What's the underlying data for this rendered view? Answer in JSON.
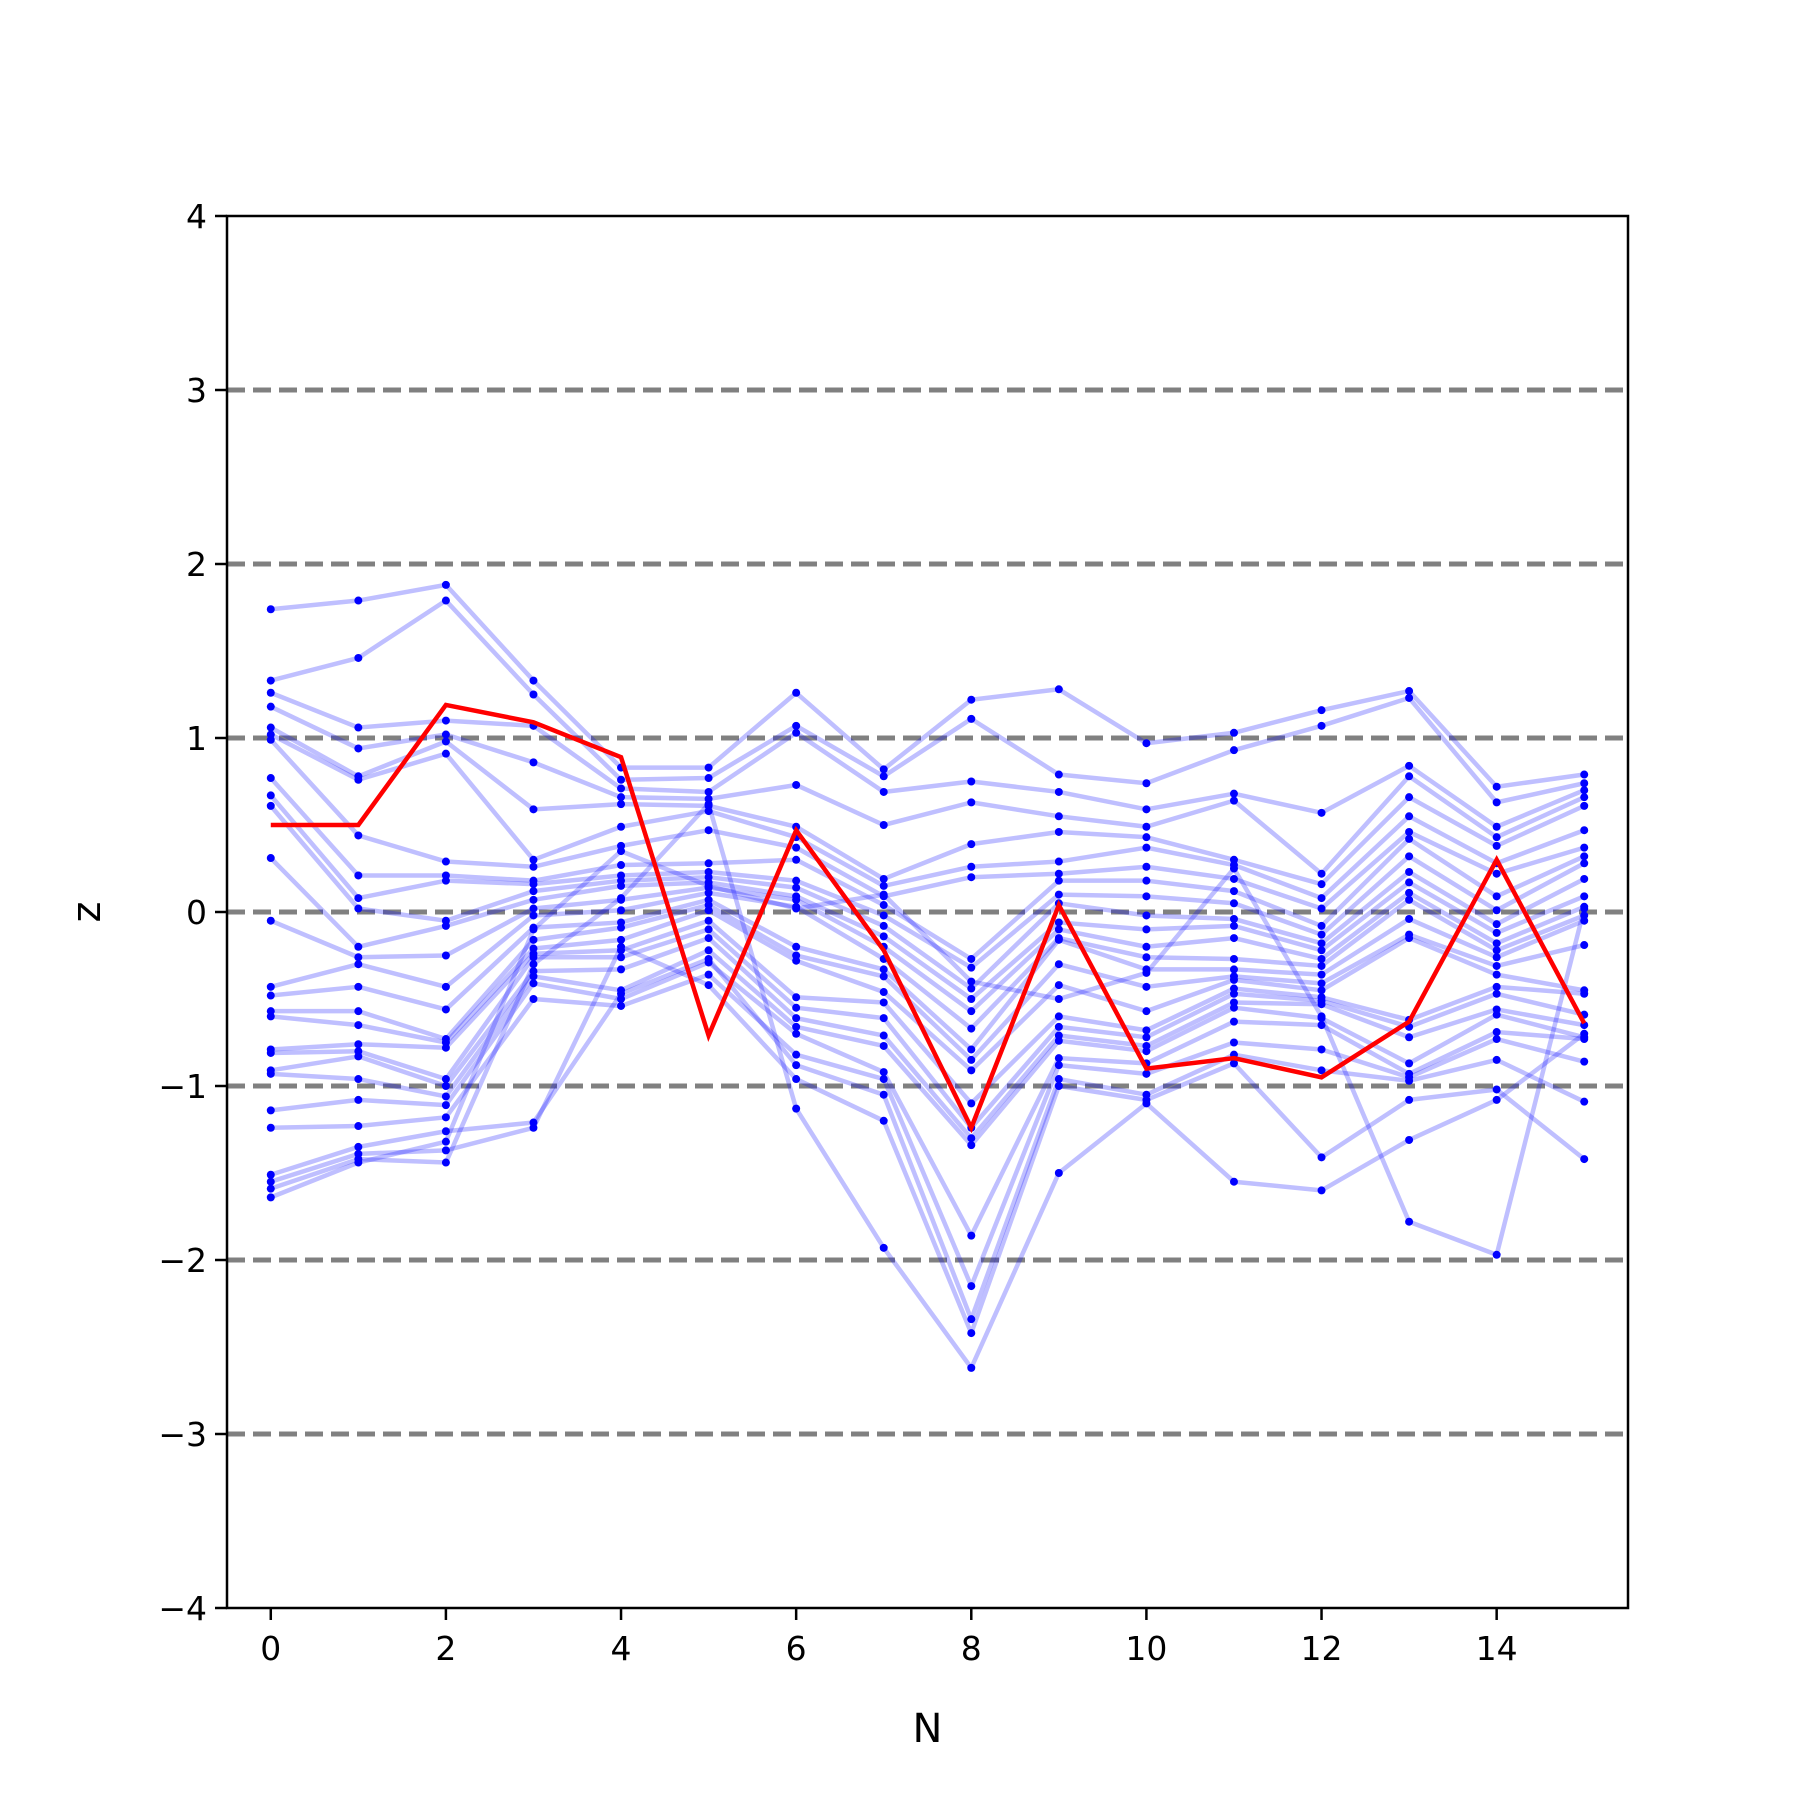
{
  "chart_data": {
    "type": "line",
    "title": "",
    "xlabel": "N",
    "ylabel": "z",
    "xlim": [
      -0.5,
      15.5
    ],
    "ylim": [
      -4,
      4
    ],
    "x": [
      0,
      1,
      2,
      3,
      4,
      5,
      6,
      7,
      8,
      9,
      10,
      11,
      12,
      13,
      14,
      15
    ],
    "x_ticks": [
      0,
      2,
      4,
      6,
      8,
      10,
      12,
      14
    ],
    "x_tick_labels": [
      "0",
      "2",
      "4",
      "6",
      "8",
      "10",
      "12",
      "14"
    ],
    "y_ticks": [
      -4,
      -3,
      -2,
      -1,
      0,
      1,
      2,
      3,
      4
    ],
    "y_tick_labels": [
      "−4",
      "−3",
      "−2",
      "−1",
      "0",
      "1",
      "2",
      "3",
      "4"
    ],
    "reference_lines": [
      -3,
      -2,
      -1,
      0,
      1,
      2,
      3
    ],
    "reference_line_color": "#808080",
    "background_color": "#0000ff",
    "highlight_color": "#ff0000",
    "highlight_series": [
      0.5,
      0.5,
      1.19,
      1.09,
      0.89,
      -0.71,
      0.47,
      -0.22,
      -1.24,
      0.04,
      -0.9,
      -0.84,
      -0.95,
      -0.63,
      0.3,
      -0.64
    ],
    "background_series": [
      [
        1.74,
        1.79,
        1.88,
        1.33,
        0.83,
        0.83,
        1.26,
        0.82,
        1.22,
        1.28,
        0.97,
        1.03,
        1.16,
        1.27,
        0.72,
        0.79
      ],
      [
        1.33,
        1.46,
        1.79,
        1.25,
        0.76,
        0.77,
        1.07,
        0.78,
        1.11,
        0.79,
        0.74,
        0.93,
        1.07,
        1.23,
        0.63,
        0.74
      ],
      [
        1.26,
        1.06,
        1.1,
        1.07,
        0.71,
        0.69,
        1.03,
        0.69,
        0.75,
        0.69,
        0.59,
        0.68,
        0.57,
        0.84,
        0.49,
        0.7
      ],
      [
        1.18,
        0.94,
        1.02,
        0.86,
        0.66,
        0.65,
        0.73,
        0.5,
        0.63,
        0.55,
        0.49,
        0.64,
        0.22,
        0.78,
        0.43,
        0.66
      ],
      [
        1.06,
        0.78,
        0.98,
        0.59,
        0.62,
        0.61,
        0.49,
        0.19,
        0.39,
        0.46,
        0.43,
        0.3,
        0.16,
        0.66,
        0.38,
        0.61
      ],
      [
        1.02,
        0.76,
        0.91,
        0.3,
        0.49,
        0.58,
        0.43,
        0.15,
        0.26,
        0.29,
        0.37,
        0.27,
        0.08,
        0.55,
        0.28,
        0.47
      ],
      [
        0.99,
        0.44,
        0.29,
        0.26,
        0.38,
        0.47,
        0.37,
        0.09,
        0.2,
        0.22,
        0.26,
        0.19,
        0.02,
        0.46,
        0.22,
        0.37
      ],
      [
        0.77,
        0.21,
        0.21,
        0.18,
        0.27,
        0.28,
        0.3,
        0.04,
        -0.27,
        0.18,
        0.18,
        0.12,
        -0.08,
        0.42,
        0.09,
        0.32
      ],
      [
        0.67,
        0.08,
        0.18,
        0.16,
        0.21,
        0.23,
        0.18,
        -0.02,
        -0.32,
        0.1,
        0.09,
        0.05,
        -0.13,
        0.32,
        0.01,
        0.28
      ],
      [
        0.61,
        0.02,
        -0.05,
        0.12,
        0.18,
        0.2,
        0.14,
        -0.08,
        -0.44,
        0.05,
        -0.02,
        -0.04,
        -0.18,
        0.23,
        -0.07,
        0.19
      ],
      [
        0.31,
        -0.2,
        -0.08,
        0.07,
        0.15,
        0.17,
        0.09,
        -0.14,
        -0.5,
        -0.06,
        -0.1,
        -0.08,
        -0.22,
        0.17,
        -0.12,
        0.09
      ],
      [
        -0.05,
        -0.26,
        -0.25,
        0.02,
        0.07,
        0.14,
        0.07,
        -0.2,
        -0.57,
        -0.1,
        -0.2,
        -0.15,
        -0.27,
        0.11,
        -0.18,
        0.03
      ],
      [
        -0.43,
        -0.3,
        -0.43,
        -0.02,
        0.01,
        0.11,
        0.03,
        -0.27,
        -0.67,
        -0.15,
        -0.26,
        -0.27,
        -0.31,
        0.07,
        -0.22,
        -0.02
      ],
      [
        -0.48,
        -0.43,
        -0.56,
        -0.09,
        -0.06,
        0.07,
        -0.2,
        -0.33,
        -0.79,
        -0.16,
        -0.33,
        -0.33,
        -0.36,
        -0.04,
        -0.26,
        -0.05
      ],
      [
        -0.57,
        -0.57,
        -0.73,
        -0.16,
        -0.09,
        0.04,
        -0.25,
        -0.37,
        -0.85,
        -0.3,
        -0.43,
        -0.37,
        -0.41,
        -0.13,
        -0.31,
        -0.19
      ],
      [
        -0.6,
        -0.65,
        -0.75,
        -0.21,
        -0.16,
        0.01,
        -0.28,
        -0.46,
        -0.91,
        -0.42,
        -0.57,
        -0.39,
        -0.45,
        -0.15,
        -0.36,
        -0.45
      ],
      [
        -0.79,
        -0.76,
        -0.78,
        -0.24,
        -0.22,
        -0.05,
        -0.49,
        -0.52,
        -1.1,
        -0.6,
        -0.68,
        -0.44,
        -0.49,
        -0.62,
        -0.43,
        -0.47
      ],
      [
        -0.81,
        -0.8,
        -0.96,
        -0.26,
        -0.26,
        -0.1,
        -0.55,
        -0.61,
        -1.24,
        -0.66,
        -0.72,
        -0.47,
        -0.51,
        -0.66,
        -0.47,
        -0.59
      ],
      [
        -0.91,
        -0.83,
        -1.0,
        -0.34,
        -0.33,
        -0.15,
        -0.61,
        -0.71,
        -1.3,
        -0.71,
        -0.77,
        -0.52,
        -0.53,
        -0.72,
        -0.56,
        -0.65
      ],
      [
        -0.93,
        -0.96,
        -1.06,
        -0.37,
        -0.45,
        -0.22,
        -0.66,
        -0.77,
        -1.34,
        -0.74,
        -0.8,
        -0.55,
        -0.61,
        -0.87,
        -0.59,
        -0.72
      ],
      [
        -1.14,
        -1.08,
        -1.11,
        -0.41,
        -0.5,
        -0.29,
        -0.7,
        -0.92,
        -1.86,
        -0.84,
        -0.87,
        -0.63,
        -0.65,
        -0.93,
        -0.69,
        -0.73
      ],
      [
        -1.24,
        -1.23,
        -1.18,
        -0.5,
        -0.54,
        -0.36,
        -0.82,
        -0.96,
        -2.15,
        -0.88,
        -0.93,
        -0.75,
        -0.79,
        -0.95,
        -0.73,
        -0.86
      ],
      [
        -1.51,
        -1.35,
        -1.26,
        -1.21,
        -0.47,
        -0.27,
        -0.88,
        -1.05,
        -2.34,
        -0.96,
        -1.05,
        -0.82,
        -0.91,
        -0.97,
        -0.85,
        -1.09
      ],
      [
        -1.55,
        -1.39,
        -1.37,
        -1.24,
        -0.2,
        -0.42,
        -0.96,
        -1.2,
        -2.42,
        -1.0,
        -1.08,
        -0.87,
        -1.41,
        -1.08,
        -1.02,
        -1.42
      ],
      [
        -1.59,
        -1.42,
        -1.44,
        -0.3,
        0.08,
        0.62,
        -1.13,
        -1.93,
        -2.62,
        -1.5,
        -1.1,
        -1.55,
        -1.6,
        -1.31,
        -1.08,
        -0.7
      ],
      [
        -1.64,
        -1.44,
        -1.32,
        -0.1,
        0.35,
        0.15,
        0.02,
        0.1,
        -0.4,
        -0.5,
        -0.35,
        0.25,
        -0.6,
        -1.78,
        -1.97,
        0.02
      ]
    ]
  }
}
